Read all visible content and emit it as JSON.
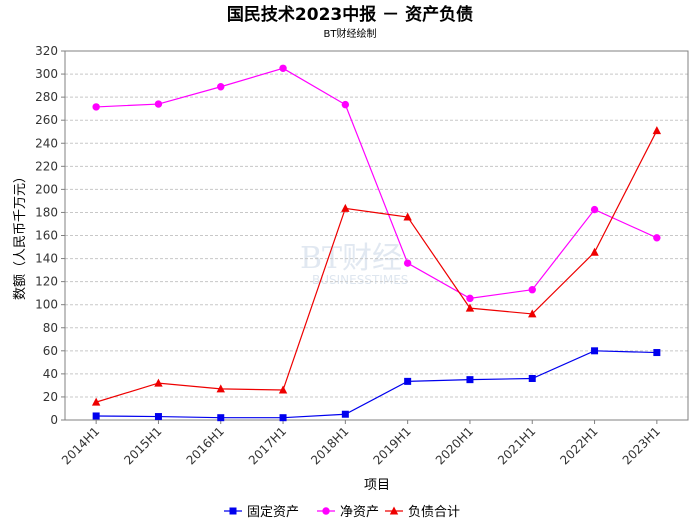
{
  "chart_data": {
    "type": "line",
    "title": "国民技术2023中报 － 资产负债",
    "subtitle": "BT财经绘制",
    "xlabel": "项目",
    "ylabel": "数额（人民币千万元）",
    "categories": [
      "2014H1",
      "2015H1",
      "2016H1",
      "2017H1",
      "2018H1",
      "2019H1",
      "2020H1",
      "2021H1",
      "2022H1",
      "2023H1"
    ],
    "ylim": [
      0,
      320
    ],
    "ytick_step": 20,
    "grid": true,
    "legend_position": "bottom",
    "series": [
      {
        "name": "固定资产",
        "color": "#0000ee",
        "marker": "square",
        "values": [
          3.5,
          3.0,
          2.0,
          2.0,
          5.0,
          33.5,
          35.0,
          36.0,
          60.0,
          58.5
        ]
      },
      {
        "name": "净资产",
        "color": "#ff00ff",
        "marker": "circle",
        "values": [
          271.5,
          274.0,
          289.0,
          305.0,
          273.5,
          136.0,
          105.5,
          113.0,
          182.5,
          158.0
        ]
      },
      {
        "name": "负债合计",
        "color": "#ee0000",
        "marker": "triangle",
        "values": [
          15.5,
          32.0,
          27.0,
          26.0,
          183.5,
          176.0,
          97.0,
          92.0,
          145.5,
          251.0
        ]
      }
    ]
  },
  "watermark": {
    "logo": "BT财经",
    "text": "BUSINESSTIMES"
  }
}
